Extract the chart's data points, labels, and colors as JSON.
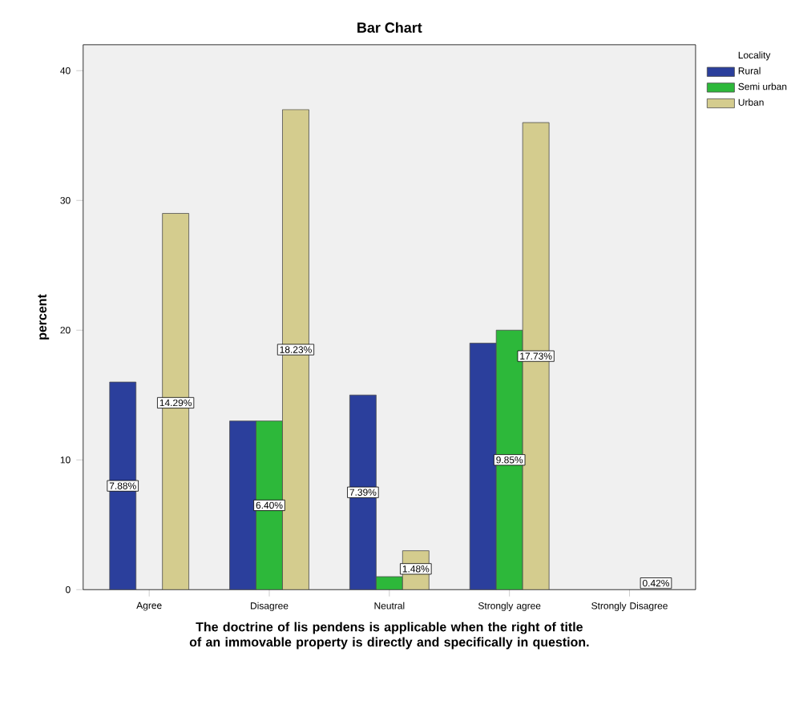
{
  "chart_data": {
    "type": "bar",
    "title": "Bar Chart",
    "xlabel": "The doctrine of lis pendens is applicable when the right of title of an immovable property is directly and specifically in question.",
    "ylabel": "percent",
    "legend_title": "Locality",
    "legend": "top right",
    "grid": false,
    "categories": [
      "Agree",
      "Disagree",
      "Neutral",
      "Strongly agree",
      "Strongly Disagree"
    ],
    "ylim": [
      0,
      42
    ],
    "yticks": [
      0,
      10,
      20,
      30,
      40
    ],
    "series": [
      {
        "name": "Rural",
        "color": "#2b3f9c",
        "values": [
          16,
          13,
          15,
          19,
          null
        ]
      },
      {
        "name": "Semi urban",
        "color": "#2db83a",
        "values": [
          null,
          13,
          1,
          20,
          null
        ]
      },
      {
        "name": "Urban",
        "color": "#d4cc8e",
        "values": [
          29,
          37,
          3,
          36,
          null
        ]
      }
    ],
    "annotations": [
      "7.88%",
      "14.29%",
      "6.40%",
      "18.23%",
      "7.39%",
      "1.48%",
      "9.85%",
      "17.73%",
      "0.42%"
    ]
  }
}
